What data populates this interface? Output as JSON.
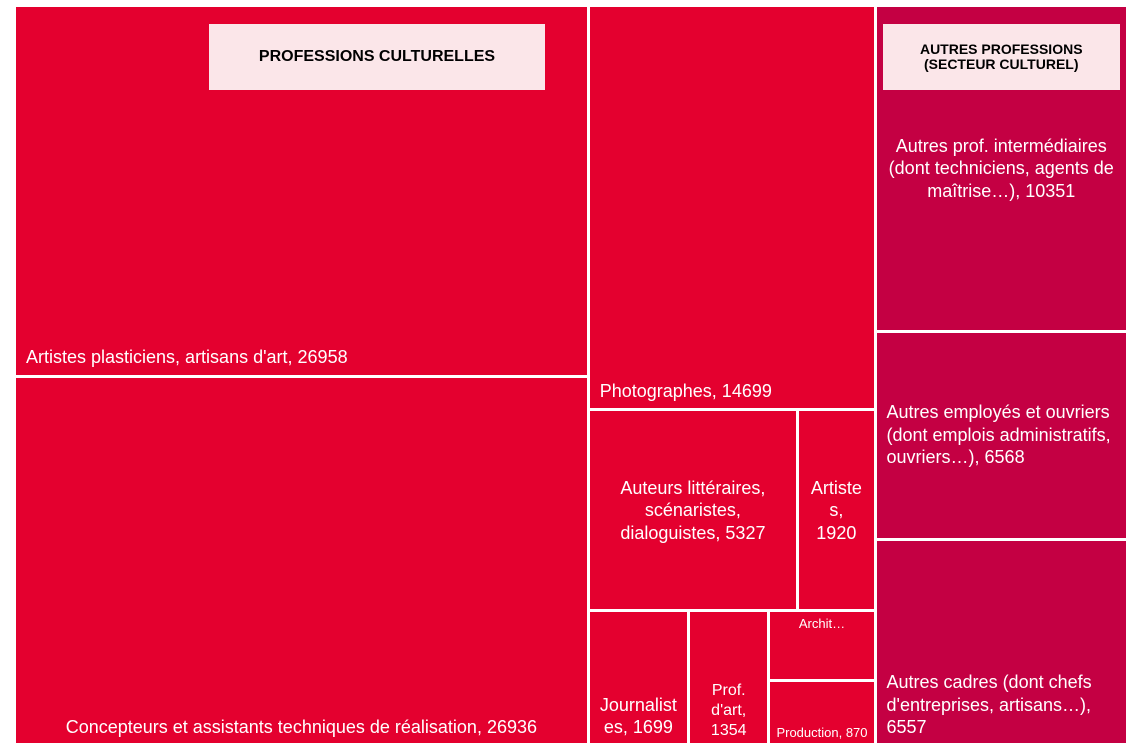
{
  "chart_data": {
    "type": "treemap",
    "groups": [
      {
        "name": "PROFESSIONS CULTURELLES",
        "color": "#e4002f",
        "leaves": [
          {
            "label": "Artistes plasticiens, artisans d'art, 26958",
            "value": 26958
          },
          {
            "label": "Concepteurs et assistants techniques de réalisation, 26936",
            "value": 26936
          },
          {
            "label": "Photographes, 14699",
            "value": 14699
          },
          {
            "label": "Auteurs littéraires, scénaristes, dialoguistes, 5327",
            "value": 5327
          },
          {
            "label": "Artistes, 1920",
            "value": 1920
          },
          {
            "label": "Journalistes, 1699",
            "value": 1699
          },
          {
            "label": "Prof. d'art, 1354",
            "value": 1354
          },
          {
            "label": "Archit…",
            "value": 930
          },
          {
            "label": "Production, 870",
            "value": 870
          }
        ]
      },
      {
        "name": "AUTRES PROFESSIONS (SECTEUR CULTUREL)",
        "color": "#c40043",
        "leaves": [
          {
            "label": "Autres prof. intermédiaires (dont techniciens, agents de maîtrise…), 10351",
            "value": 10351
          },
          {
            "label": "Autres employés et ouvriers (dont emplois administratifs, ouvriers…), 6568",
            "value": 6568
          },
          {
            "label": "Autres cadres (dont chefs d'entreprises, artisans…), 6557",
            "value": 6557
          }
        ]
      }
    ]
  }
}
